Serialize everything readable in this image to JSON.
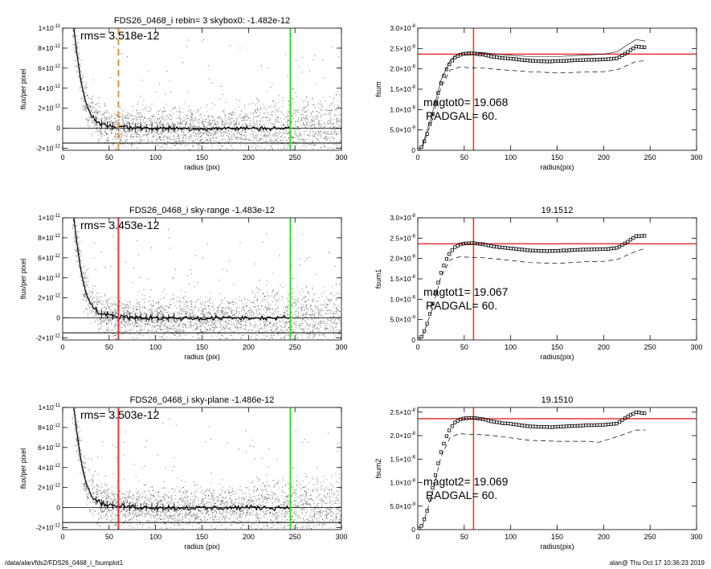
{
  "footer": {
    "path": "/data/alan/fds2/FDS26_0468_i_fsumplot1",
    "stamp": "alan@  Thu Oct 17 10:36:23 2019"
  },
  "colors": {
    "red": "#e8333a",
    "green": "#2bd82b",
    "orange": "#e8923a",
    "scatter": "#a6a6a6",
    "profile": "#000000"
  },
  "chart_data": [
    {
      "type": "scatter",
      "title": "FDS26_0468_i rebin= 3    skybox0: -1.482e-12",
      "annotation": "rms= 3.518e-12",
      "xlabel": "radius (pix)",
      "ylabel": "flux/per pixel",
      "xlim": [
        0,
        300
      ],
      "ylim": [
        -2.2e-12,
        1e-11
      ],
      "xticks": [
        "0",
        "50",
        "100",
        "150",
        "200",
        "250",
        "300"
      ],
      "yticks": [
        {
          "v": -2e-12,
          "m": "-2×10",
          "e": "-12"
        },
        {
          "v": 0,
          "m": "0",
          "e": ""
        },
        {
          "v": 2e-12,
          "m": "2×10",
          "e": "-12"
        },
        {
          "v": 4e-12,
          "m": "4×10",
          "e": "-12"
        },
        {
          "v": 6e-12,
          "m": "6×10",
          "e": "-12"
        },
        {
          "v": 8e-12,
          "m": "8×10",
          "e": "-12"
        },
        {
          "v": 1e-11,
          "m": "1×10",
          "e": "-11"
        }
      ],
      "sky_level": -1.482e-12,
      "marker_color": "orange",
      "marker_style": "dashed",
      "marker_x": 60,
      "outer_x": 245,
      "profile": [
        [
          12,
          1e-11
        ],
        [
          16,
          7e-12
        ],
        [
          20,
          4.5e-12
        ],
        [
          25,
          2.5e-12
        ],
        [
          30,
          1.4e-12
        ],
        [
          35,
          8e-13
        ],
        [
          40,
          5e-13
        ],
        [
          45,
          3.5e-13
        ],
        [
          50,
          2.5e-13
        ],
        [
          60,
          1.5e-13
        ],
        [
          80,
          5e-14
        ],
        [
          100,
          0
        ],
        [
          150,
          -5e-14
        ],
        [
          200,
          0
        ],
        [
          245,
          0
        ]
      ]
    },
    {
      "type": "scatter",
      "title": "FDS26_0468_i sky-range -1.483e-12",
      "annotation": "rms= 3.453e-12",
      "xlabel": "radius (pix)",
      "ylabel": "flux/per pixel",
      "xlim": [
        0,
        300
      ],
      "ylim": [
        -2.2e-12,
        1e-11
      ],
      "xticks": [
        "0",
        "50",
        "100",
        "150",
        "200",
        "250",
        "300"
      ],
      "yticks": [
        {
          "v": -2e-12,
          "m": "-2×10",
          "e": "-12"
        },
        {
          "v": 0,
          "m": "0",
          "e": ""
        },
        {
          "v": 2e-12,
          "m": "2×10",
          "e": "-12"
        },
        {
          "v": 4e-12,
          "m": "4×10",
          "e": "-12"
        },
        {
          "v": 6e-12,
          "m": "6×10",
          "e": "-12"
        },
        {
          "v": 8e-12,
          "m": "8×10",
          "e": "-12"
        },
        {
          "v": 1e-11,
          "m": "1×10",
          "e": "-11"
        }
      ],
      "sky_level": -1.483e-12,
      "marker_color": "red",
      "marker_style": "solid",
      "marker_x": 60,
      "outer_x": 245,
      "profile": [
        [
          12,
          1e-11
        ],
        [
          16,
          7e-12
        ],
        [
          20,
          4.5e-12
        ],
        [
          25,
          2.5e-12
        ],
        [
          30,
          1.4e-12
        ],
        [
          35,
          8e-13
        ],
        [
          40,
          5e-13
        ],
        [
          45,
          3.5e-13
        ],
        [
          50,
          2.5e-13
        ],
        [
          60,
          1.5e-13
        ],
        [
          80,
          5e-14
        ],
        [
          100,
          0
        ],
        [
          150,
          -5e-14
        ],
        [
          200,
          0
        ],
        [
          245,
          0
        ]
      ]
    },
    {
      "type": "scatter",
      "title": "FDS26_0468_i sky-plane -1.486e-12",
      "annotation": "rms= 3.503e-12",
      "xlabel": "radius (pix)",
      "ylabel": "flux/per pixel",
      "xlim": [
        0,
        300
      ],
      "ylim": [
        -2.2e-12,
        1e-11
      ],
      "xticks": [
        "0",
        "50",
        "100",
        "150",
        "200",
        "250",
        "300"
      ],
      "yticks": [
        {
          "v": -2e-12,
          "m": "-2×10",
          "e": "-12"
        },
        {
          "v": 0,
          "m": "0",
          "e": ""
        },
        {
          "v": 2e-12,
          "m": "2×10",
          "e": "-12"
        },
        {
          "v": 4e-12,
          "m": "4×10",
          "e": "-12"
        },
        {
          "v": 6e-12,
          "m": "6×10",
          "e": "-12"
        },
        {
          "v": 8e-12,
          "m": "8×10",
          "e": "-12"
        },
        {
          "v": 1e-11,
          "m": "1×10",
          "e": "-11"
        }
      ],
      "sky_level": -1.486e-12,
      "marker_color": "red",
      "marker_style": "solid",
      "marker_x": 60,
      "outer_x": 245,
      "profile": [
        [
          12,
          1e-11
        ],
        [
          16,
          7e-12
        ],
        [
          20,
          4.5e-12
        ],
        [
          25,
          2.5e-12
        ],
        [
          30,
          1.4e-12
        ],
        [
          35,
          8e-13
        ],
        [
          40,
          5e-13
        ],
        [
          45,
          3.5e-13
        ],
        [
          50,
          2.5e-13
        ],
        [
          60,
          1.5e-13
        ],
        [
          80,
          5e-14
        ],
        [
          100,
          0
        ],
        [
          150,
          -5e-14
        ],
        [
          200,
          0
        ],
        [
          245,
          0
        ]
      ]
    },
    {
      "type": "line",
      "title": "",
      "xlabel": "radius(pix)",
      "ylabel": "fsum",
      "xlim": [
        0,
        300
      ],
      "ylim": [
        0,
        3e-08
      ],
      "xticks": [
        "0",
        "50",
        "100",
        "150",
        "200",
        "250",
        "300"
      ],
      "yticks": [
        {
          "v": 0,
          "m": "0",
          "e": ""
        },
        {
          "v": 5e-09,
          "m": "5.0×10",
          "e": "-9"
        },
        {
          "v": 1e-08,
          "m": "1.0×10",
          "e": "-8"
        },
        {
          "v": 1.5e-08,
          "m": "1.5×10",
          "e": "-8"
        },
        {
          "v": 2e-08,
          "m": "2.0×10",
          "e": "-8"
        },
        {
          "v": 2.5e-08,
          "m": "2.5×10",
          "e": "-8"
        },
        {
          "v": 3e-08,
          "m": "3.0×10",
          "e": "-8"
        }
      ],
      "annotations": [
        "magtot0=  19.068",
        "RADGAL=    60."
      ],
      "hline": 2.36e-08,
      "vline": 60,
      "curve": [
        [
          0,
          0
        ],
        [
          5,
          1e-09
        ],
        [
          10,
          4e-09
        ],
        [
          15,
          8e-09
        ],
        [
          20,
          1.25e-08
        ],
        [
          25,
          1.65e-08
        ],
        [
          30,
          1.95e-08
        ],
        [
          35,
          2.15e-08
        ],
        [
          40,
          2.28e-08
        ],
        [
          45,
          2.34e-08
        ],
        [
          50,
          2.37e-08
        ],
        [
          60,
          2.38e-08
        ],
        [
          70,
          2.35e-08
        ],
        [
          80,
          2.3e-08
        ],
        [
          90,
          2.27e-08
        ],
        [
          100,
          2.25e-08
        ],
        [
          120,
          2.2e-08
        ],
        [
          140,
          2.18e-08
        ],
        [
          160,
          2.2e-08
        ],
        [
          180,
          2.22e-08
        ],
        [
          200,
          2.23e-08
        ],
        [
          215,
          2.26e-08
        ],
        [
          225,
          2.4e-08
        ],
        [
          235,
          2.55e-08
        ],
        [
          245,
          2.52e-08
        ]
      ],
      "upper": [
        [
          5,
          1.2e-09
        ],
        [
          15,
          8.6e-09
        ],
        [
          25,
          1.72e-08
        ],
        [
          35,
          2.22e-08
        ],
        [
          45,
          2.38e-08
        ],
        [
          55,
          2.42e-08
        ],
        [
          70,
          2.4e-08
        ],
        [
          90,
          2.35e-08
        ],
        [
          120,
          2.3e-08
        ],
        [
          150,
          2.3e-08
        ],
        [
          180,
          2.34e-08
        ],
        [
          200,
          2.36e-08
        ],
        [
          215,
          2.42e-08
        ],
        [
          225,
          2.58e-08
        ],
        [
          235,
          2.72e-08
        ],
        [
          245,
          2.68e-08
        ]
      ],
      "lower": [
        [
          5,
          8e-10
        ],
        [
          15,
          7.2e-09
        ],
        [
          25,
          1.55e-08
        ],
        [
          35,
          1.97e-08
        ],
        [
          45,
          2.04e-08
        ],
        [
          55,
          2.03e-08
        ],
        [
          70,
          2.02e-08
        ],
        [
          90,
          1.98e-08
        ],
        [
          120,
          1.93e-08
        ],
        [
          150,
          1.9e-08
        ],
        [
          180,
          1.92e-08
        ],
        [
          200,
          1.93e-08
        ],
        [
          215,
          1.98e-08
        ],
        [
          225,
          2.08e-08
        ],
        [
          235,
          2.18e-08
        ],
        [
          245,
          2.2e-08
        ]
      ],
      "band_solid": true
    },
    {
      "type": "line",
      "title": "19.1512",
      "xlabel": "radius(pix)",
      "ylabel": "fsum1",
      "xlim": [
        0,
        300
      ],
      "ylim": [
        0,
        3e-08
      ],
      "xticks": [
        "0",
        "50",
        "100",
        "150",
        "200",
        "250",
        "300"
      ],
      "yticks": [
        {
          "v": 0,
          "m": "0",
          "e": ""
        },
        {
          "v": 5e-09,
          "m": "5.0×10",
          "e": "-9"
        },
        {
          "v": 1e-08,
          "m": "1.0×10",
          "e": "-8"
        },
        {
          "v": 1.5e-08,
          "m": "1.5×10",
          "e": "-8"
        },
        {
          "v": 2e-08,
          "m": "2.0×10",
          "e": "-8"
        },
        {
          "v": 2.5e-08,
          "m": "2.5×10",
          "e": "-8"
        },
        {
          "v": 3e-08,
          "m": "3.0×10",
          "e": "-8"
        }
      ],
      "annotations": [
        "magtot1=  19.067",
        "RADGAL=    60."
      ],
      "hline": 2.36e-08,
      "vline": 60,
      "curve": [
        [
          0,
          0
        ],
        [
          5,
          1e-09
        ],
        [
          10,
          4e-09
        ],
        [
          15,
          8e-09
        ],
        [
          20,
          1.25e-08
        ],
        [
          25,
          1.65e-08
        ],
        [
          30,
          1.95e-08
        ],
        [
          35,
          2.15e-08
        ],
        [
          40,
          2.28e-08
        ],
        [
          45,
          2.34e-08
        ],
        [
          50,
          2.37e-08
        ],
        [
          60,
          2.38e-08
        ],
        [
          70,
          2.35e-08
        ],
        [
          80,
          2.3e-08
        ],
        [
          90,
          2.27e-08
        ],
        [
          100,
          2.25e-08
        ],
        [
          120,
          2.2e-08
        ],
        [
          140,
          2.18e-08
        ],
        [
          160,
          2.2e-08
        ],
        [
          180,
          2.22e-08
        ],
        [
          200,
          2.23e-08
        ],
        [
          215,
          2.26e-08
        ],
        [
          225,
          2.4e-08
        ],
        [
          235,
          2.55e-08
        ],
        [
          245,
          2.56e-08
        ]
      ],
      "lower": [
        [
          5,
          8e-10
        ],
        [
          15,
          7.2e-09
        ],
        [
          25,
          1.55e-08
        ],
        [
          35,
          1.97e-08
        ],
        [
          45,
          2.04e-08
        ],
        [
          55,
          2.03e-08
        ],
        [
          70,
          2.02e-08
        ],
        [
          90,
          1.98e-08
        ],
        [
          120,
          1.9e-08
        ],
        [
          150,
          1.88e-08
        ],
        [
          180,
          1.92e-08
        ],
        [
          200,
          1.93e-08
        ],
        [
          215,
          1.98e-08
        ],
        [
          225,
          2.08e-08
        ],
        [
          235,
          2.18e-08
        ],
        [
          245,
          2.25e-08
        ]
      ],
      "band_solid": false
    },
    {
      "type": "line",
      "title": "19.1510",
      "xlabel": "radius(pix)",
      "ylabel": "fsum2",
      "xlim": [
        0,
        300
      ],
      "ylim": [
        0,
        2.6e-08
      ],
      "xticks": [
        "0",
        "50",
        "100",
        "150",
        "200",
        "250",
        "300"
      ],
      "yticks": [
        {
          "v": 0,
          "m": "0",
          "e": ""
        },
        {
          "v": 5e-09,
          "m": "5.0×10",
          "e": "-9"
        },
        {
          "v": 1e-08,
          "m": "1.0×10",
          "e": "-8"
        },
        {
          "v": 1.5e-08,
          "m": "1.5×10",
          "e": "-8"
        },
        {
          "v": 2e-08,
          "m": "2.0×10",
          "e": "-8"
        },
        {
          "v": 2.5e-08,
          "m": "2.5×10",
          "e": "-8"
        }
      ],
      "annotations": [
        "magtot2=  19.069",
        "RADGAL=    60."
      ],
      "hline": 2.36e-08,
      "vline": 60,
      "curve": [
        [
          0,
          0
        ],
        [
          5,
          1e-09
        ],
        [
          10,
          4e-09
        ],
        [
          15,
          8e-09
        ],
        [
          20,
          1.25e-08
        ],
        [
          25,
          1.65e-08
        ],
        [
          30,
          1.95e-08
        ],
        [
          35,
          2.15e-08
        ],
        [
          40,
          2.28e-08
        ],
        [
          45,
          2.34e-08
        ],
        [
          50,
          2.37e-08
        ],
        [
          60,
          2.38e-08
        ],
        [
          70,
          2.35e-08
        ],
        [
          80,
          2.3e-08
        ],
        [
          90,
          2.27e-08
        ],
        [
          100,
          2.25e-08
        ],
        [
          120,
          2.2e-08
        ],
        [
          140,
          2.18e-08
        ],
        [
          160,
          2.2e-08
        ],
        [
          180,
          2.22e-08
        ],
        [
          200,
          2.23e-08
        ],
        [
          215,
          2.26e-08
        ],
        [
          225,
          2.4e-08
        ],
        [
          235,
          2.5e-08
        ],
        [
          245,
          2.47e-08
        ]
      ],
      "lower": [
        [
          5,
          8e-10
        ],
        [
          15,
          7.2e-09
        ],
        [
          25,
          1.55e-08
        ],
        [
          35,
          1.97e-08
        ],
        [
          45,
          2.04e-08
        ],
        [
          55,
          2.03e-08
        ],
        [
          70,
          2.02e-08
        ],
        [
          90,
          1.98e-08
        ],
        [
          120,
          1.9e-08
        ],
        [
          150,
          1.88e-08
        ],
        [
          180,
          1.88e-08
        ],
        [
          195,
          1.86e-08
        ],
        [
          210,
          1.95e-08
        ],
        [
          225,
          2.05e-08
        ],
        [
          235,
          2.12e-08
        ],
        [
          245,
          2.12e-08
        ]
      ],
      "band_solid": false
    }
  ]
}
